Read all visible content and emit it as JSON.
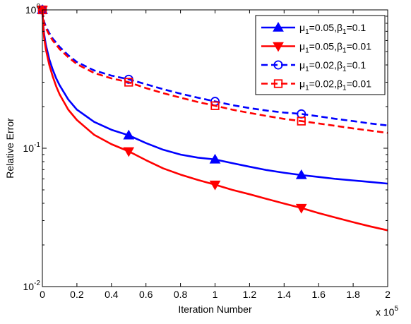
{
  "chart_data": {
    "type": "line",
    "xlabel": "Iteration Number",
    "ylabel": "Relative Error",
    "x_multiplier_text": "x 10",
    "x_multiplier_exp": "5",
    "xlim": [
      0,
      2
    ],
    "ylim": [
      0.01,
      1
    ],
    "yscale": "log",
    "x_ticks": [
      "0",
      "0.2",
      "0.4",
      "0.6",
      "0.8",
      "1",
      "1.2",
      "1.4",
      "1.6",
      "1.8",
      "2"
    ],
    "y_ticks": [
      {
        "value": 1,
        "base": "10",
        "exp": "0"
      },
      {
        "value": 0.1,
        "base": "10",
        "exp": "-1"
      },
      {
        "value": 0.01,
        "base": "10",
        "exp": "-2"
      }
    ],
    "grid": false,
    "legend_position": "top-right",
    "series": [
      {
        "name": "μ1=0.05,β1=0.1",
        "legend_parts": [
          "μ",
          "1",
          "=0.05,β",
          "1",
          "=0.1"
        ],
        "color": "#0000ff",
        "dash": "solid",
        "marker": "triangle-up",
        "x": [
          0,
          0.005,
          0.01,
          0.02,
          0.04,
          0.06,
          0.08,
          0.1,
          0.15,
          0.2,
          0.3,
          0.4,
          0.5,
          0.6,
          0.7,
          0.8,
          0.9,
          1.0,
          1.1,
          1.2,
          1.3,
          1.4,
          1.5,
          1.6,
          1.7,
          1.8,
          1.9,
          2.0
        ],
        "values": [
          1.0,
          0.78,
          0.67,
          0.56,
          0.44,
          0.37,
          0.32,
          0.285,
          0.225,
          0.19,
          0.155,
          0.136,
          0.124,
          0.109,
          0.0975,
          0.09,
          0.0855,
          0.083,
          0.078,
          0.0735,
          0.0695,
          0.0665,
          0.064,
          0.062,
          0.06,
          0.0585,
          0.057,
          0.0555
        ],
        "marker_x": [
          0,
          0.5,
          1.0,
          1.5
        ],
        "marker_values": [
          1.0,
          0.124,
          0.083,
          0.064
        ]
      },
      {
        "name": "μ1=0.05,β1=0.01",
        "legend_parts": [
          "μ",
          "1",
          "=0.05,β",
          "1",
          "=0.01"
        ],
        "color": "#ff0000",
        "dash": "solid",
        "marker": "triangle-down",
        "x": [
          0,
          0.005,
          0.01,
          0.02,
          0.04,
          0.06,
          0.08,
          0.1,
          0.15,
          0.2,
          0.3,
          0.4,
          0.5,
          0.6,
          0.7,
          0.8,
          0.9,
          1.0,
          1.1,
          1.2,
          1.3,
          1.4,
          1.5,
          1.6,
          1.7,
          1.8,
          1.9,
          2.0
        ],
        "values": [
          1.0,
          0.76,
          0.63,
          0.52,
          0.4,
          0.33,
          0.28,
          0.245,
          0.19,
          0.16,
          0.125,
          0.107,
          0.095,
          0.082,
          0.0715,
          0.0645,
          0.059,
          0.0545,
          0.05,
          0.0465,
          0.043,
          0.0398,
          0.037,
          0.034,
          0.0315,
          0.0292,
          0.0272,
          0.0255
        ],
        "marker_x": [
          0,
          0.5,
          1.0,
          1.5
        ],
        "marker_values": [
          1.0,
          0.095,
          0.0545,
          0.037
        ]
      },
      {
        "name": "μ1=0.02,β1=0.1",
        "legend_parts": [
          "μ",
          "1",
          "=0.02,β",
          "1",
          "=0.1"
        ],
        "color": "#0000ff",
        "dash": "dashed",
        "marker": "circle",
        "x": [
          0,
          0.005,
          0.01,
          0.02,
          0.04,
          0.06,
          0.08,
          0.1,
          0.15,
          0.2,
          0.3,
          0.4,
          0.5,
          0.6,
          0.7,
          0.8,
          0.9,
          1.0,
          1.1,
          1.2,
          1.3,
          1.4,
          1.5,
          1.6,
          1.7,
          1.8,
          1.9,
          2.0
        ],
        "values": [
          1.0,
          0.88,
          0.82,
          0.76,
          0.68,
          0.62,
          0.58,
          0.54,
          0.47,
          0.42,
          0.365,
          0.335,
          0.315,
          0.29,
          0.267,
          0.248,
          0.232,
          0.218,
          0.205,
          0.195,
          0.187,
          0.181,
          0.177,
          0.17,
          0.163,
          0.157,
          0.151,
          0.146
        ],
        "marker_x": [
          0,
          0.5,
          1.0,
          1.5
        ],
        "marker_values": [
          1.0,
          0.315,
          0.218,
          0.177
        ]
      },
      {
        "name": "μ1=0.02,β1=0.01",
        "legend_parts": [
          "μ",
          "1",
          "=0.02,β",
          "1",
          "=0.01"
        ],
        "color": "#ff0000",
        "dash": "dashed",
        "marker": "square",
        "x": [
          0,
          0.005,
          0.01,
          0.02,
          0.04,
          0.06,
          0.08,
          0.1,
          0.15,
          0.2,
          0.3,
          0.4,
          0.5,
          0.6,
          0.7,
          0.8,
          0.9,
          1.0,
          1.1,
          1.2,
          1.3,
          1.4,
          1.5,
          1.6,
          1.7,
          1.8,
          1.9,
          2.0
        ],
        "values": [
          1.0,
          0.87,
          0.8,
          0.74,
          0.66,
          0.6,
          0.56,
          0.52,
          0.455,
          0.405,
          0.35,
          0.32,
          0.3,
          0.272,
          0.25,
          0.232,
          0.216,
          0.203,
          0.19,
          0.18,
          0.171,
          0.163,
          0.157,
          0.151,
          0.145,
          0.139,
          0.134,
          0.129
        ],
        "marker_x": [
          0,
          0.5,
          1.0,
          1.5
        ],
        "marker_values": [
          1.0,
          0.3,
          0.203,
          0.157
        ]
      }
    ]
  }
}
